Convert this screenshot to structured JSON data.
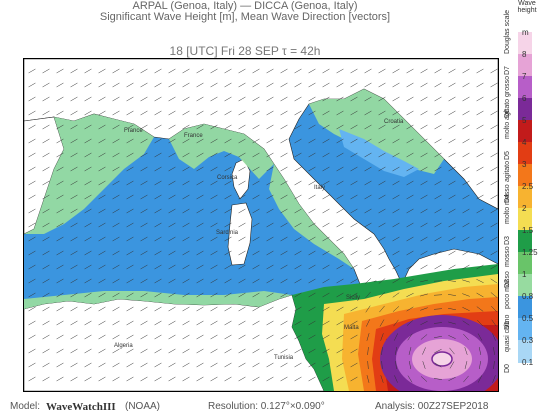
{
  "header": {
    "line1": "ARPAL (Genoa, Italy)  —  DICCA (Genoa, Italy)",
    "line2": "Significant Wave Height [m], Mean Wave Direction [vectors]",
    "run": "18 [UTC] Fri 28 SEP   τ = 42h"
  },
  "colorbar": {
    "title": "Wave height",
    "ticks": [
      "m",
      "8",
      "7",
      "6",
      "5",
      "4",
      "3",
      "2.5",
      "2",
      "1.5",
      "1.25",
      "1",
      "0.8",
      "0.5",
      "0.3",
      "0.1"
    ],
    "colors": [
      "#f6d4e8",
      "#e6a3d6",
      "#b75ec8",
      "#7b2a98",
      "#c21b1b",
      "#e23d14",
      "#f3771a",
      "#f7b330",
      "#f4dd52",
      "#1f9d48",
      "#69c469",
      "#97dba0",
      "#3b95df",
      "#64b4f1",
      "#a9d7f5"
    ],
    "sea_states": [
      "Douglas scale",
      "D7",
      "grosso",
      "D6",
      "molto agitato",
      "D5",
      "agitato",
      "D4",
      "molto mosso",
      "D3",
      "mosso",
      "D2",
      "poco mosso",
      "D1",
      "quasi calmo",
      "D0"
    ]
  },
  "footer": {
    "model_label": "Model:",
    "model_name": "WaveWatchIII",
    "model_org": "(NOAA)",
    "resolution": "Resolution: 0.127°×0.090°",
    "analysis": "Analysis: 00Z27SEP2018"
  },
  "map_labels": [
    "France",
    "France",
    "Italy",
    "Algeria",
    "Tunisia",
    "Sardinia",
    "Corsica",
    "Sicily",
    "Croatia",
    "Malta"
  ]
}
